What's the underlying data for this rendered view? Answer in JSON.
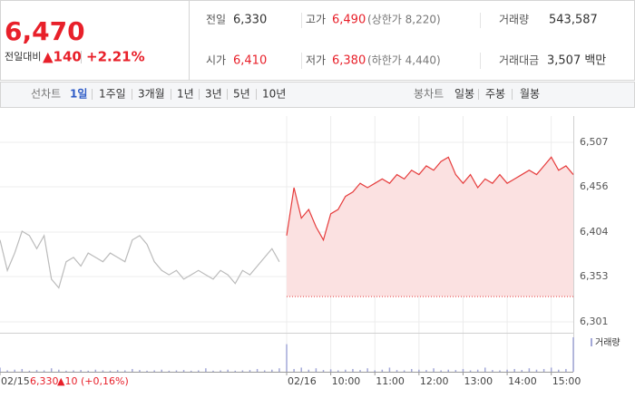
{
  "quote": {
    "price": "6,470",
    "change_label": "전일대비",
    "change": "▲140",
    "change_rate": "+2.21%"
  },
  "summary": {
    "rows": [
      [
        {
          "label": "전일",
          "value": "6,330"
        },
        {
          "label": "고가",
          "value": "6,490",
          "note": "(상한가 8,220)"
        },
        {
          "label": "거래량",
          "value": "543,587"
        }
      ],
      [
        {
          "label": "시가",
          "value": "6,410"
        },
        {
          "label": "저가",
          "value": "6,380",
          "note": "(하한가 4,440)"
        },
        {
          "label": "거래대금",
          "value": "3,507 백만"
        }
      ]
    ]
  },
  "tabs": {
    "line_label": "선차트",
    "line_items": [
      "1일",
      "1주일",
      "3개월",
      "1년",
      "3년",
      "5년",
      "10년"
    ],
    "candle_label": "봉차트",
    "candle_items": [
      "일봉",
      "주봉",
      "월봉"
    ]
  },
  "chart_data": {
    "type": "line",
    "xlim": [
      0,
      780
    ],
    "ylim": [
      6301,
      6507
    ],
    "yticks": [
      {
        "value": 6301,
        "label": "6,301"
      },
      {
        "value": 6353,
        "label": "6,353"
      },
      {
        "value": 6404,
        "label": "6,404"
      },
      {
        "value": 6456,
        "label": "6,456"
      },
      {
        "value": 6507,
        "label": "6,507"
      }
    ],
    "xticks": [
      {
        "value": 0,
        "label": "02/15"
      },
      {
        "value": 390,
        "label": "02/16"
      },
      {
        "value": 450,
        "label": "10:00"
      },
      {
        "value": 510,
        "label": "11:00"
      },
      {
        "value": 570,
        "label": "12:00"
      },
      {
        "value": 630,
        "label": "13:00"
      },
      {
        "value": 690,
        "label": "14:00"
      },
      {
        "value": 750,
        "label": "15:00"
      }
    ],
    "grid": true,
    "baseline": 6330,
    "annotation": [
      "6,330",
      "▲10",
      "(+0,16%)"
    ],
    "volume_label": "거래량",
    "volume_ylim": [
      0,
      100
    ],
    "volume_color": "#a3a8d8",
    "series": [
      {
        "color": "#bbbbbb",
        "area": false,
        "x": [
          0,
          10,
          20,
          30,
          40,
          50,
          60,
          70,
          80,
          90,
          100,
          110,
          120,
          130,
          140,
          150,
          160,
          170,
          180,
          190,
          200,
          210,
          220,
          230,
          240,
          250,
          260,
          270,
          280,
          290,
          300,
          310,
          320,
          330,
          340,
          350,
          360,
          370,
          380
        ],
        "values": [
          6395,
          6360,
          6380,
          6405,
          6400,
          6385,
          6400,
          6350,
          6340,
          6370,
          6375,
          6365,
          6380,
          6375,
          6370,
          6380,
          6375,
          6370,
          6395,
          6400,
          6390,
          6370,
          6360,
          6355,
          6360,
          6350,
          6355,
          6360,
          6355,
          6350,
          6360,
          6355,
          6345,
          6360,
          6355,
          6365,
          6375,
          6385,
          6370
        ],
        "volume": [
          12,
          4,
          6,
          8,
          3,
          5,
          4,
          10,
          6,
          3,
          4,
          5,
          3,
          6,
          4,
          3,
          5,
          4,
          8,
          5,
          3,
          4,
          6,
          3,
          4,
          5,
          3,
          4,
          10,
          3,
          4,
          6,
          3,
          4,
          5,
          8,
          4,
          6,
          10
        ]
      },
      {
        "color": "#e63c3c",
        "area": true,
        "area_color": "#fbe1e1",
        "x": [
          390,
          400,
          410,
          420,
          430,
          440,
          450,
          460,
          470,
          480,
          490,
          500,
          510,
          520,
          530,
          540,
          550,
          560,
          570,
          580,
          590,
          600,
          610,
          620,
          630,
          640,
          650,
          660,
          670,
          680,
          690,
          700,
          710,
          720,
          730,
          740,
          750,
          760,
          770,
          780
        ],
        "values": [
          6400,
          6455,
          6420,
          6430,
          6410,
          6395,
          6425,
          6430,
          6445,
          6450,
          6460,
          6455,
          6460,
          6465,
          6460,
          6470,
          6465,
          6475,
          6470,
          6480,
          6475,
          6485,
          6490,
          6470,
          6460,
          6470,
          6455,
          6465,
          6460,
          6470,
          6460,
          6465,
          6470,
          6475,
          6470,
          6480,
          6490,
          6475,
          6480,
          6470
        ],
        "volume": [
          80,
          8,
          12,
          6,
          10,
          5,
          7,
          4,
          6,
          8,
          5,
          10,
          4,
          6,
          12,
          5,
          4,
          8,
          6,
          5,
          10,
          4,
          6,
          5,
          8,
          4,
          6,
          12,
          5,
          4,
          6,
          8,
          5,
          10,
          6,
          8,
          12,
          6,
          8,
          100
        ]
      }
    ]
  }
}
